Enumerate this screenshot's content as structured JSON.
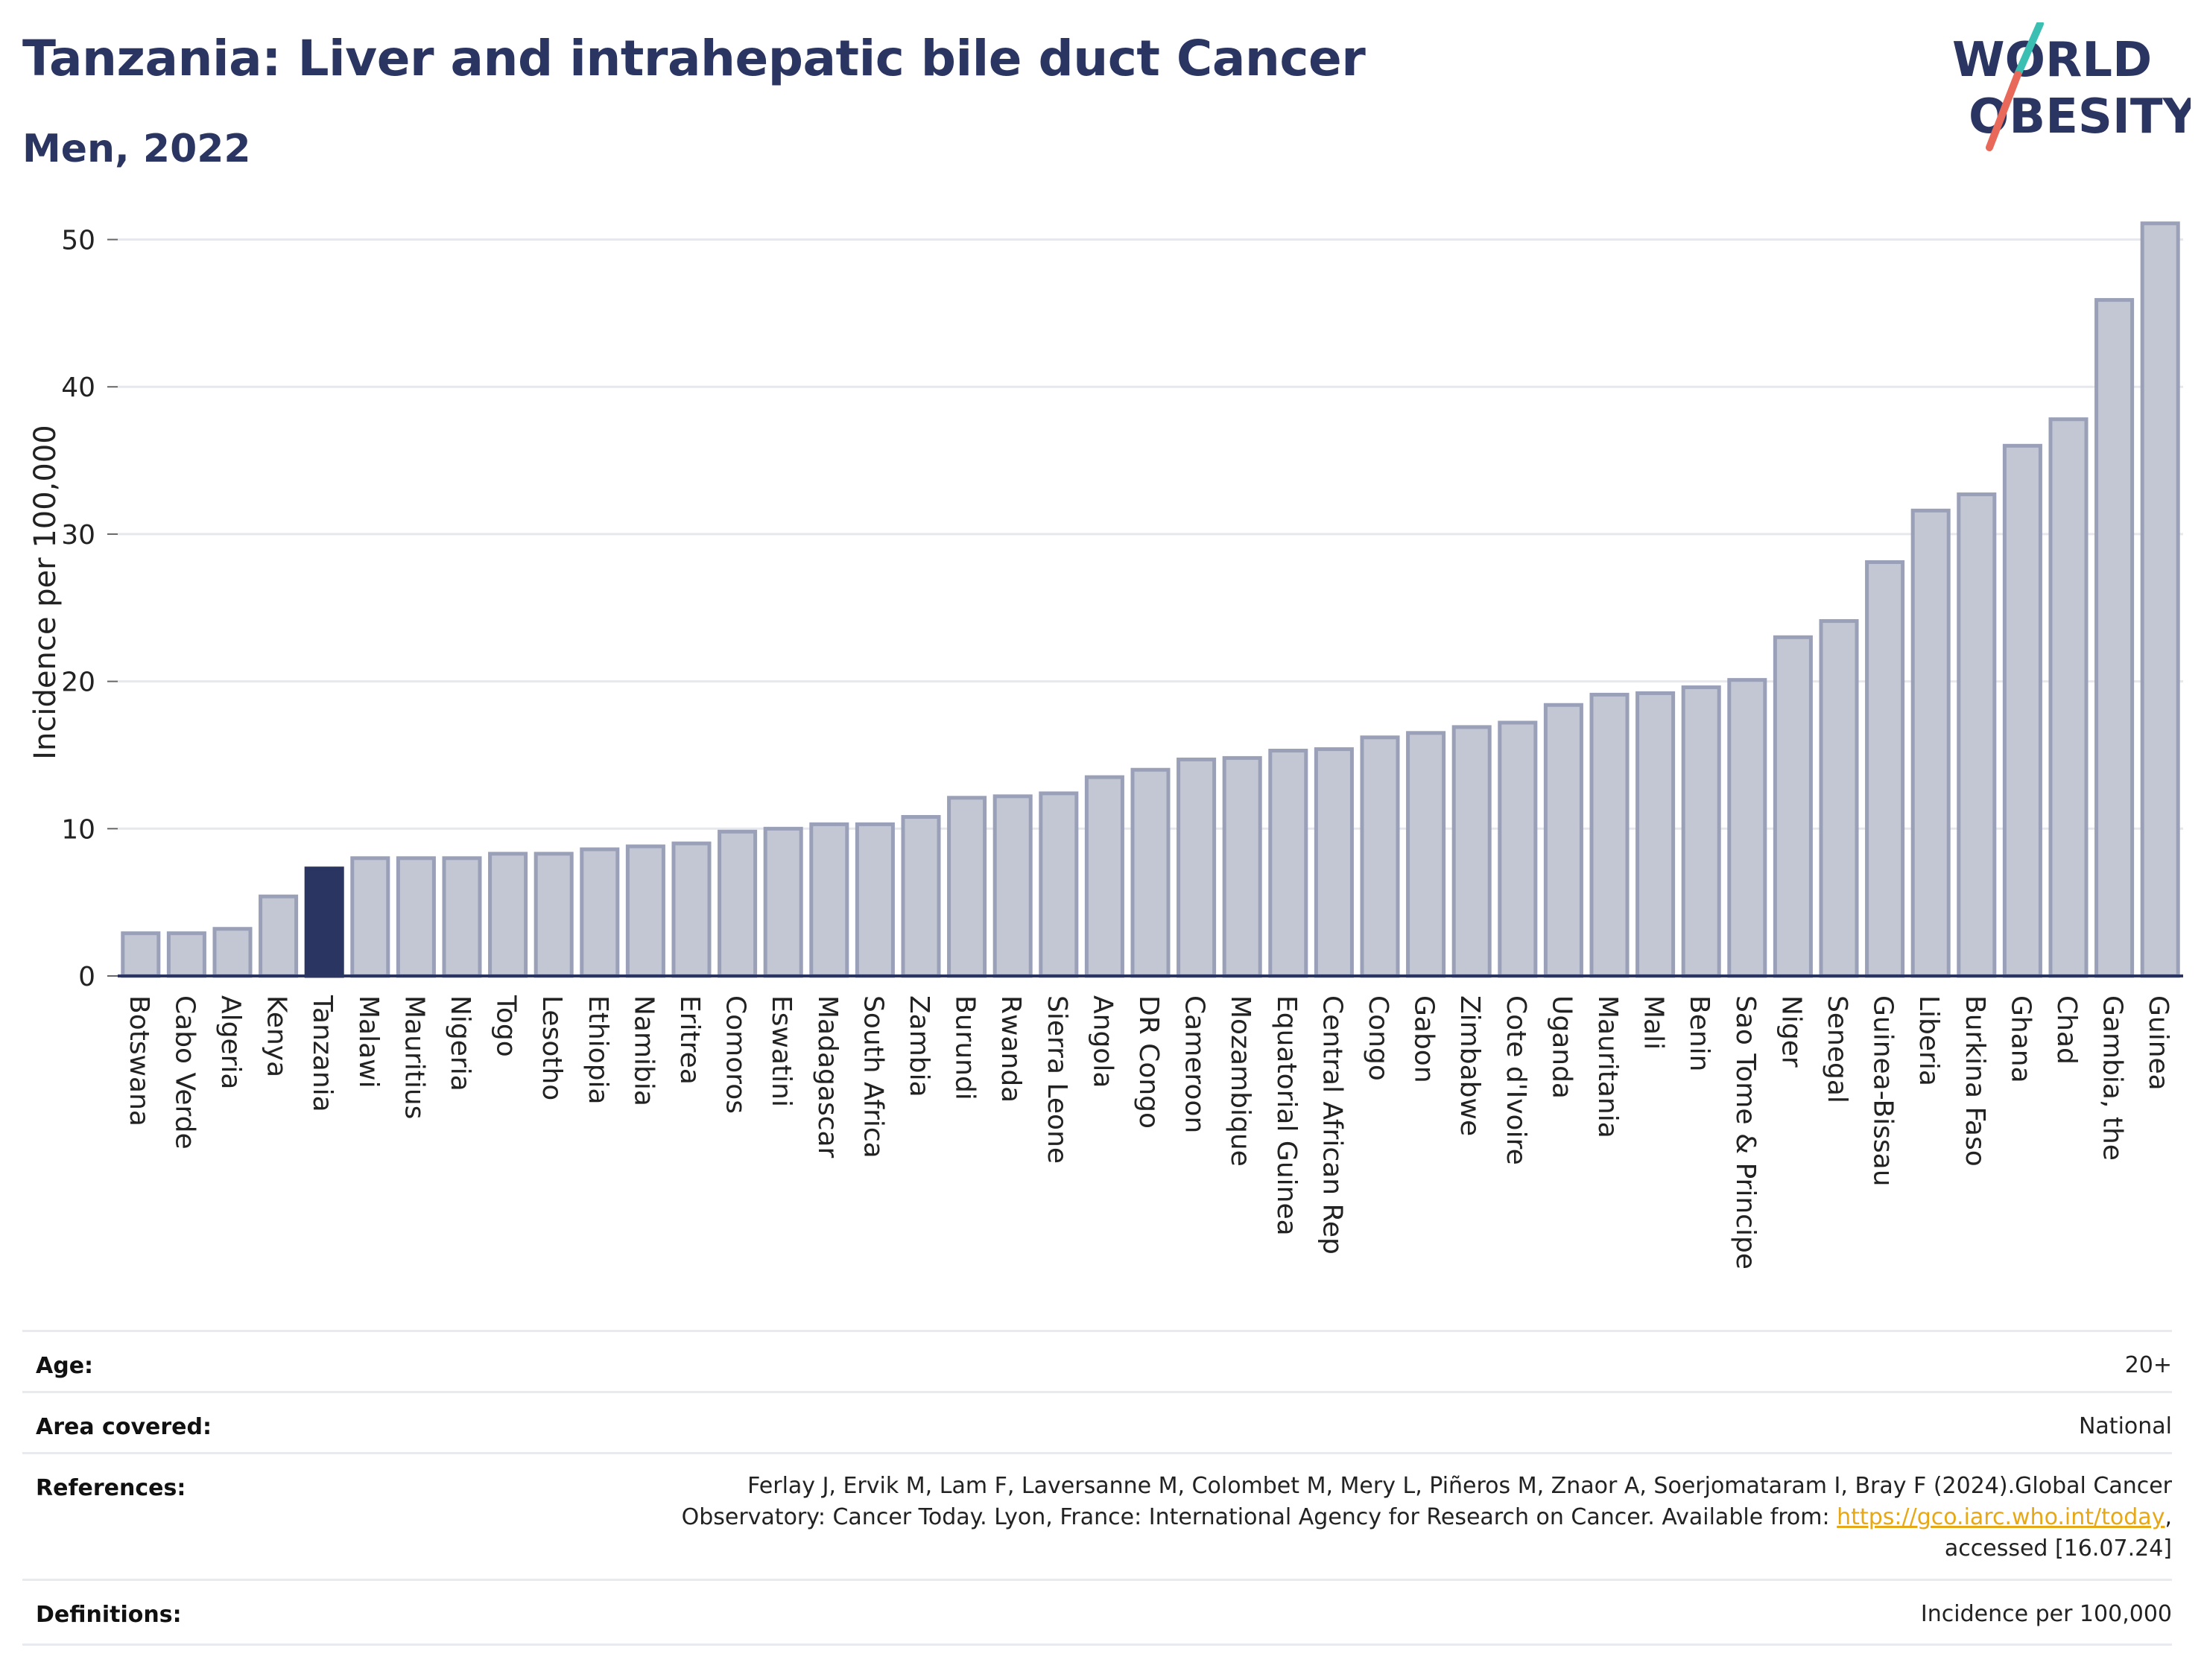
{
  "header": {
    "title": "Tanzania: Liver and intrahepatic bile duct Cancer",
    "subtitle": "Men, 2022"
  },
  "logo": {
    "line1": "WORLD",
    "line2": "OBESITY",
    "colors": {
      "text": "#2b3561",
      "slash_top": "#3cbfb3",
      "slash_bottom": "#e8685a"
    }
  },
  "chart_data": {
    "type": "bar",
    "title": "Tanzania: Liver and intrahepatic bile duct Cancer",
    "subtitle": "Men, 2022",
    "xlabel": "",
    "ylabel": "Incidence per 100,000",
    "ylim": [
      0,
      52
    ],
    "yticks": [
      0,
      10,
      20,
      30,
      40,
      50
    ],
    "grid": true,
    "highlight": "Tanzania",
    "colors": {
      "bar": "#c3c6d3",
      "bar_edge": "#9aa0b8",
      "highlight": "#2b3561",
      "grid": "#e6e8ee",
      "axis": "#2b3561"
    },
    "categories": [
      "Botswana",
      "Cabo Verde",
      "Algeria",
      "Kenya",
      "Tanzania",
      "Malawi",
      "Mauritius",
      "Nigeria",
      "Togo",
      "Lesotho",
      "Ethiopia",
      "Namibia",
      "Eritrea",
      "Comoros",
      "Eswatini",
      "Madagascar",
      "South Africa",
      "Zambia",
      "Burundi",
      "Rwanda",
      "Sierra Leone",
      "Angola",
      "DR Congo",
      "Cameroon",
      "Mozambique",
      "Equatorial Guinea",
      "Central African Rep",
      "Congo",
      "Gabon",
      "Zimbabwe",
      "Cote d'Ivoire",
      "Uganda",
      "Mauritania",
      "Mali",
      "Benin",
      "Sao Tome & Principe",
      "Niger",
      "Senegal",
      "Guinea-Bissau",
      "Liberia",
      "Burkina Faso",
      "Ghana",
      "Chad",
      "Gambia, the",
      "Guinea"
    ],
    "values": [
      2.9,
      2.9,
      3.2,
      5.4,
      7.3,
      8.0,
      8.0,
      8.0,
      8.3,
      8.3,
      8.6,
      8.8,
      9.0,
      9.8,
      10.0,
      10.3,
      10.3,
      10.8,
      12.1,
      12.2,
      12.4,
      13.5,
      14.0,
      14.7,
      14.8,
      15.3,
      15.4,
      16.2,
      16.5,
      16.9,
      17.2,
      18.4,
      19.1,
      19.2,
      19.6,
      20.1,
      23.0,
      24.1,
      28.1,
      31.6,
      32.7,
      36.0,
      37.8,
      45.9,
      51.1
    ]
  },
  "info": {
    "age_label": "Age:",
    "age_value": "20+",
    "area_label": "Area covered:",
    "area_value": "National",
    "references_label": "References:",
    "references_line1": "Ferlay J, Ervik M, Lam F, Laversanne M, Colombet M, Mery L, Piñeros M, Znaor A, Soerjomataram I, Bray F (2024).Global Cancer",
    "references_line2_pre": "Observatory: Cancer Today. Lyon, France: International Agency for Research on Cancer. Available from: ",
    "references_link": "https://gco.iarc.who.int/today",
    "references_line2_post": ",",
    "references_line3": "accessed [16.07.24]",
    "definitions_label": "Definitions:",
    "definitions_value": "Incidence per 100,000"
  }
}
